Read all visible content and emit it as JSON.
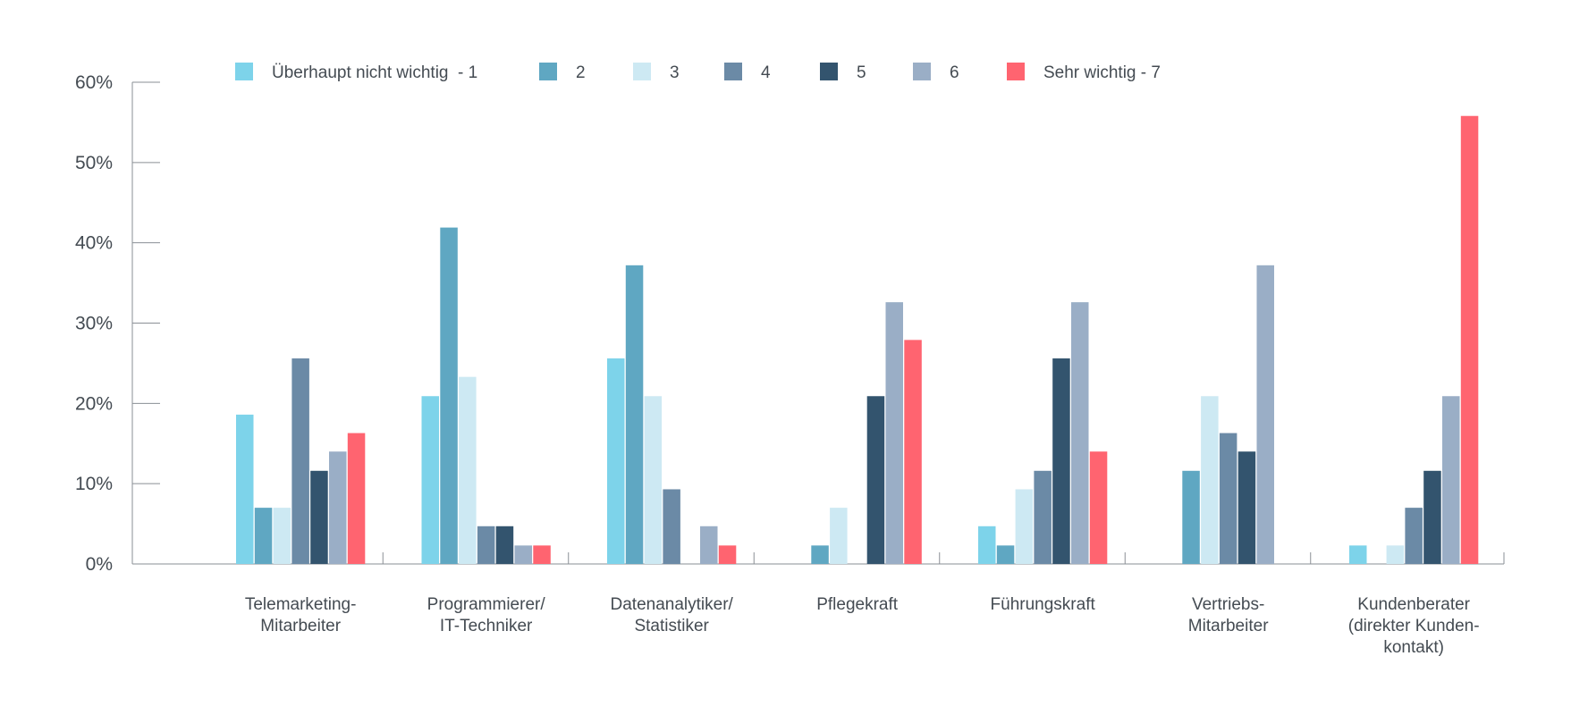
{
  "chart_data": {
    "type": "bar",
    "title": "",
    "xlabel": "",
    "ylabel": "",
    "ylim": [
      0,
      60
    ],
    "yticks": [
      "0%",
      "10%",
      "20%",
      "30%",
      "40%",
      "50%",
      "60%"
    ],
    "legend_position": "top",
    "grid": false,
    "categories": [
      [
        "Telemarketing-",
        "Mitarbeiter"
      ],
      [
        "Programmierer/",
        "IT-Techniker"
      ],
      [
        "Datenanalytiker/",
        "Statistiker"
      ],
      [
        "Pflegekraft"
      ],
      [
        "Führungskraft"
      ],
      [
        "Vertriebs-",
        "Mitarbeiter"
      ],
      [
        "Kundenberater",
        "(direkter Kunden-",
        "kontakt)"
      ]
    ],
    "series": [
      {
        "name": "Überhaupt nicht wichtig  - 1",
        "color": "#7dd3ea",
        "values": [
          18.6,
          20.9,
          25.6,
          0,
          4.7,
          0,
          2.3
        ]
      },
      {
        "name": "2",
        "color": "#5fa7c2",
        "values": [
          7.0,
          41.9,
          37.2,
          2.3,
          2.3,
          11.6,
          0
        ]
      },
      {
        "name": "3",
        "color": "#cde9f3",
        "values": [
          7.0,
          23.3,
          20.9,
          7.0,
          9.3,
          20.9,
          2.3
        ]
      },
      {
        "name": "4",
        "color": "#6b8aa6",
        "values": [
          25.6,
          4.7,
          9.3,
          0,
          11.6,
          16.3,
          7.0
        ]
      },
      {
        "name": "5",
        "color": "#33546e",
        "values": [
          11.6,
          4.7,
          0,
          20.9,
          25.6,
          14.0,
          11.6
        ]
      },
      {
        "name": "6",
        "color": "#9aaec6",
        "values": [
          14.0,
          2.3,
          4.7,
          32.6,
          32.6,
          37.2,
          20.9
        ]
      },
      {
        "name": "Sehr wichtig - 7",
        "color": "#ff6470",
        "values": [
          16.3,
          2.3,
          2.3,
          27.9,
          14.0,
          0,
          55.8
        ]
      }
    ],
    "axis_color": "#8a8f95"
  }
}
